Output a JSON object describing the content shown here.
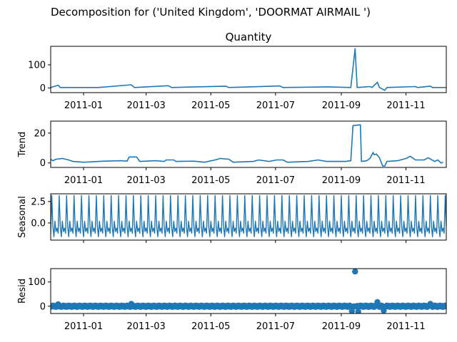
{
  "figure": {
    "suptitle": "Decomposition for ('United Kingdom', 'DOORMAT AIRMAIL ')"
  },
  "colors": {
    "series": "#1f77b4",
    "axis": "#000000",
    "background": "#ffffff"
  },
  "chart_data": [
    {
      "type": "line",
      "title": "Quantity",
      "ylabel": "",
      "x_range": [
        "2010-12-01",
        "2011-12-09"
      ],
      "ylim": [
        -20,
        180
      ],
      "yticks": [
        0,
        100
      ],
      "xticks": [
        "2011-01",
        "2011-03",
        "2011-05",
        "2011-07",
        "2011-09",
        "2011-11"
      ],
      "series": [
        {
          "points": [
            [
              "2010-12-01",
              2
            ],
            [
              "2010-12-08",
              12
            ],
            [
              "2010-12-10",
              2
            ],
            [
              "2011-01-15",
              2
            ],
            [
              "2011-02-15",
              14
            ],
            [
              "2011-02-18",
              2
            ],
            [
              "2011-03-22",
              10
            ],
            [
              "2011-03-25",
              2
            ],
            [
              "2011-05-15",
              8
            ],
            [
              "2011-05-18",
              2
            ],
            [
              "2011-07-05",
              9
            ],
            [
              "2011-07-08",
              2
            ],
            [
              "2011-08-20",
              5
            ],
            [
              "2011-09-10",
              2
            ],
            [
              "2011-09-14",
              170
            ],
            [
              "2011-09-16",
              2
            ],
            [
              "2011-09-28",
              6
            ],
            [
              "2011-09-30",
              2
            ],
            [
              "2011-10-05",
              25
            ],
            [
              "2011-10-07",
              2
            ],
            [
              "2011-10-12",
              -10
            ],
            [
              "2011-10-14",
              2
            ],
            [
              "2011-11-10",
              6
            ],
            [
              "2011-11-12",
              2
            ],
            [
              "2011-11-24",
              8
            ],
            [
              "2011-11-26",
              2
            ],
            [
              "2011-12-09",
              2
            ]
          ]
        }
      ]
    },
    {
      "type": "line",
      "title": "",
      "ylabel": "Trend",
      "x_range": [
        "2010-12-01",
        "2011-12-09"
      ],
      "ylim": [
        -3,
        28
      ],
      "yticks": [
        0,
        20
      ],
      "xticks": [
        "2011-01",
        "2011-03",
        "2011-05",
        "2011-07",
        "2011-09",
        "2011-11"
      ],
      "series": [
        {
          "points": [
            [
              "2010-12-01",
              2.5
            ],
            [
              "2010-12-03",
              1.5
            ],
            [
              "2010-12-06",
              2.5
            ],
            [
              "2010-12-12",
              3
            ],
            [
              "2010-12-18",
              2
            ],
            [
              "2010-12-22",
              1
            ],
            [
              "2011-01-01",
              0.5
            ],
            [
              "2011-01-20",
              1.2
            ],
            [
              "2011-02-05",
              1.5
            ],
            [
              "2011-02-11",
              1.2
            ],
            [
              "2011-02-13",
              4
            ],
            [
              "2011-02-20",
              4
            ],
            [
              "2011-02-23",
              1
            ],
            [
              "2011-03-10",
              1.5
            ],
            [
              "2011-03-18",
              1
            ],
            [
              "2011-03-20",
              2
            ],
            [
              "2011-03-27",
              2
            ],
            [
              "2011-03-29",
              1
            ],
            [
              "2011-04-15",
              1.2
            ],
            [
              "2011-04-25",
              0.5
            ],
            [
              "2011-05-05",
              2
            ],
            [
              "2011-05-10",
              3
            ],
            [
              "2011-05-18",
              2.5
            ],
            [
              "2011-05-22",
              0.5
            ],
            [
              "2011-06-10",
              1
            ],
            [
              "2011-06-15",
              2
            ],
            [
              "2011-06-25",
              1
            ],
            [
              "2011-07-02",
              2
            ],
            [
              "2011-07-08",
              2
            ],
            [
              "2011-07-12",
              0.5
            ],
            [
              "2011-08-01",
              1
            ],
            [
              "2011-08-10",
              2
            ],
            [
              "2011-08-18",
              1
            ],
            [
              "2011-09-05",
              1
            ],
            [
              "2011-09-10",
              1.5
            ],
            [
              "2011-09-12",
              25
            ],
            [
              "2011-09-19",
              25.5
            ],
            [
              "2011-09-20",
              1
            ],
            [
              "2011-09-25",
              1.5
            ],
            [
              "2011-09-28",
              3
            ],
            [
              "2011-10-01",
              7
            ],
            [
              "2011-10-02",
              5.5
            ],
            [
              "2011-10-04",
              6
            ],
            [
              "2011-10-07",
              3.5
            ],
            [
              "2011-10-10",
              -2
            ],
            [
              "2011-10-12",
              -2
            ],
            [
              "2011-10-14",
              1
            ],
            [
              "2011-10-24",
              1.5
            ],
            [
              "2011-11-01",
              3
            ],
            [
              "2011-11-05",
              4.5
            ],
            [
              "2011-11-10",
              2
            ],
            [
              "2011-11-18",
              2
            ],
            [
              "2011-11-22",
              3.5
            ],
            [
              "2011-11-28",
              1
            ],
            [
              "2011-12-01",
              2
            ],
            [
              "2011-12-04",
              0
            ],
            [
              "2011-12-06",
              0.5
            ]
          ]
        }
      ]
    },
    {
      "type": "line",
      "title": "",
      "ylabel": "Seasonal",
      "x_range": [
        "2010-12-01",
        "2011-12-09"
      ],
      "ylim": [
        -2,
        3.4
      ],
      "yticks": [
        0.0,
        2.5
      ],
      "xticks": [],
      "period_days": 7,
      "cycle_values": [
        -1.2,
        3.2,
        -0.4,
        -1.6,
        0.2,
        -1.0,
        -0.6
      ]
    },
    {
      "type": "scatter",
      "title": "",
      "ylabel": "Resid",
      "x_range": [
        "2010-12-01",
        "2011-12-09"
      ],
      "ylim": [
        -30,
        155
      ],
      "yticks": [
        0,
        100
      ],
      "xticks": [
        "2011-01",
        "2011-03",
        "2011-05",
        "2011-07",
        "2011-09",
        "2011-11"
      ],
      "baseline": 0,
      "outliers": [
        [
          "2011-09-14",
          143
        ],
        [
          "2011-09-11",
          -20
        ],
        [
          "2011-09-17",
          -22
        ],
        [
          "2011-10-05",
          17
        ],
        [
          "2011-10-11",
          -18
        ],
        [
          "2011-02-15",
          10
        ],
        [
          "2010-12-08",
          8
        ],
        [
          "2011-11-24",
          10
        ]
      ]
    }
  ]
}
